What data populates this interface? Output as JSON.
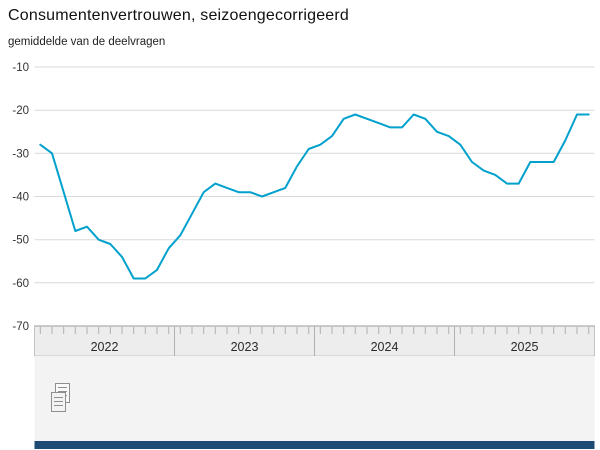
{
  "title": "Consumentenvertrouwen, seizoengecorrigeerd",
  "subtitle": "gemiddelde van de deelvragen",
  "chart_data": {
    "type": "line",
    "title": "Consumentenvertrouwen, seizoengecorrigeerd",
    "subtitle": "gemiddelde van de deelvragen",
    "x_unit": "month",
    "years": [
      "2022",
      "2023",
      "2024",
      "2025"
    ],
    "values_by_year": {
      "2022": [
        -28,
        -30,
        -39,
        -48,
        -47,
        -50,
        -51,
        -54,
        -59,
        -59,
        -57,
        -52
      ],
      "2023": [
        -49,
        -44,
        -39,
        -37,
        -38,
        -39,
        -39,
        -40,
        -39,
        -38,
        -33,
        -29
      ],
      "2024": [
        -28,
        -26,
        -22,
        -21,
        -22,
        -23,
        -24,
        -24,
        -21,
        -22,
        -25,
        -26
      ],
      "2025": [
        -28,
        -32,
        -34,
        -35,
        -37,
        -37,
        -32,
        -32,
        -32,
        -27,
        -21,
        -21
      ]
    },
    "yticks": [
      -10,
      -20,
      -30,
      -40,
      -50,
      -60,
      -70
    ],
    "ylim": [
      -70,
      -10
    ],
    "grid": true,
    "legend": "none",
    "line_color": "#00a1cd"
  },
  "footer": {
    "download_icon": "download-data-icon"
  },
  "colors": {
    "grid": "#d9d9d9",
    "axis_text": "#333333",
    "year_text": "#2a2a2a",
    "band_fill": "#ededed",
    "band_top_border": "#9a9a9a",
    "band_border": "#c3c3c3",
    "tick": "#b0b0b0",
    "footer_fill": "#f3f3f3",
    "bottom_bar": "#1d4b76",
    "icon": "#8f8f8f"
  }
}
